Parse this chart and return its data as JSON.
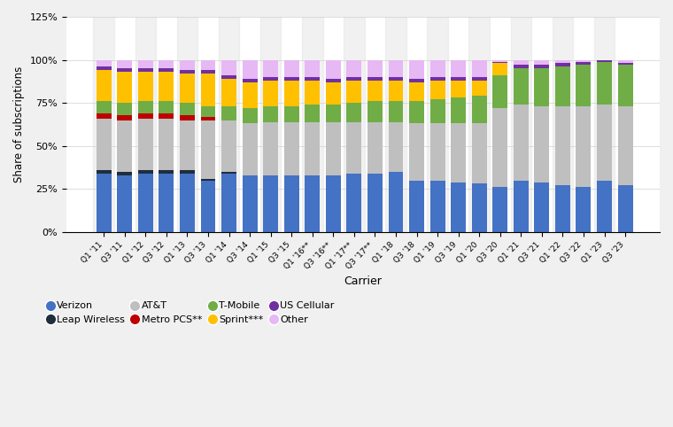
{
  "quarters": [
    "Q1 '11",
    "Q3 '11",
    "Q1 '12",
    "Q3 '12",
    "Q1 '13",
    "Q3 '13",
    "Q1 '14",
    "Q3 '14",
    "Q1 '15",
    "Q3 '15",
    "Q1 '16**",
    "Q3 '16**",
    "Q1 '17**",
    "Q3 '17**",
    "Q1 '18",
    "Q3 '18",
    "Q1 '19",
    "Q3 '19",
    "Q1 '20",
    "Q3 '20",
    "Q1 '21",
    "Q3 '21",
    "Q1 '22",
    "Q3 '22",
    "Q1 '23",
    "Q3 '23"
  ],
  "verizon": [
    34,
    33,
    34,
    34,
    34,
    30,
    34,
    33,
    33,
    33,
    33,
    33,
    34,
    34,
    35,
    30,
    30,
    29,
    28,
    26,
    30,
    29,
    27,
    26,
    30,
    27
  ],
  "leap": [
    2,
    2,
    2,
    2,
    2,
    1,
    1,
    0,
    0,
    0,
    0,
    0,
    0,
    0,
    0,
    0,
    0,
    0,
    0,
    0,
    0,
    0,
    0,
    0,
    0,
    0
  ],
  "att": [
    30,
    30,
    30,
    30,
    29,
    34,
    30,
    30,
    31,
    31,
    31,
    31,
    30,
    30,
    29,
    33,
    33,
    34,
    35,
    46,
    44,
    44,
    46,
    47,
    44,
    46
  ],
  "metropcs": [
    3,
    3,
    3,
    3,
    3,
    2,
    0,
    0,
    0,
    0,
    0,
    0,
    0,
    0,
    0,
    0,
    0,
    0,
    0,
    0,
    0,
    0,
    0,
    0,
    0,
    0
  ],
  "tmobile": [
    7,
    7,
    7,
    7,
    7,
    6,
    8,
    9,
    9,
    9,
    10,
    10,
    11,
    12,
    12,
    13,
    14,
    15,
    16,
    19,
    21,
    22,
    23,
    24,
    25,
    24
  ],
  "sprint": [
    18,
    18,
    17,
    17,
    17,
    19,
    16,
    15,
    15,
    15,
    14,
    13,
    13,
    12,
    12,
    11,
    11,
    10,
    9,
    7,
    0,
    0,
    0,
    0,
    0,
    0
  ],
  "uscellular": [
    2,
    2,
    2,
    2,
    2,
    2,
    2,
    2,
    2,
    2,
    2,
    2,
    2,
    2,
    2,
    2,
    2,
    2,
    2,
    1,
    2,
    2,
    2,
    2,
    1,
    1
  ],
  "other": [
    4,
    5,
    5,
    5,
    6,
    6,
    9,
    11,
    10,
    10,
    10,
    11,
    10,
    10,
    10,
    11,
    10,
    10,
    10,
    1,
    3,
    3,
    2,
    1,
    0,
    2
  ],
  "colors": {
    "verizon": "#4472c4",
    "leap": "#1f2d3d",
    "att": "#bfbfbf",
    "metropcs": "#c00000",
    "tmobile": "#70ad47",
    "sprint": "#ffc000",
    "uscellular": "#7030a0",
    "other": "#e6b8f4"
  },
  "labels": {
    "verizon": "Verizon",
    "leap": "Leap Wireless",
    "att": "AT&T",
    "metropcs": "Metro PCS**",
    "tmobile": "T-Mobile",
    "sprint": "Sprint***",
    "uscellular": "US Cellular",
    "other": "Other"
  },
  "ylabel": "Share of subscriptions",
  "xlabel": "Carrier",
  "ylim": [
    0,
    125
  ],
  "yticks": [
    0,
    25,
    50,
    75,
    100,
    125
  ],
  "ytick_labels": [
    "0%",
    "25%",
    "50%",
    "75%",
    "100%",
    "125%"
  ],
  "bg_color": "#f0f0f0",
  "plot_bg_color": "#ffffff"
}
